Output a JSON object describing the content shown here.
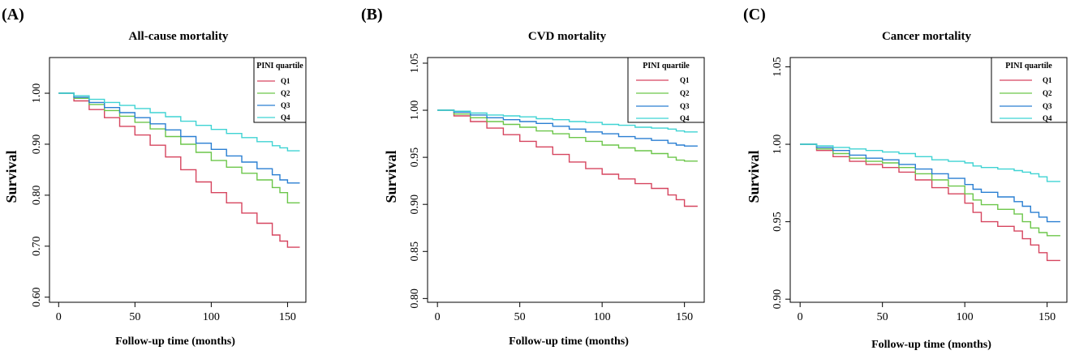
{
  "chart_data": [
    {
      "type": "line",
      "panel_label": "(A)",
      "title": "All-cause mortality",
      "xlabel": "Follow-up time (months)",
      "ylabel": "Survival",
      "xlim": [
        -6,
        162
      ],
      "ylim": [
        0.59,
        1.07
      ],
      "xticks": [
        0,
        50,
        100,
        150
      ],
      "yticks": [
        0.6,
        0.7,
        0.8,
        0.9,
        1.0
      ],
      "ytick_labels": [
        "0.60",
        "0.70",
        "0.80",
        "0.90",
        "1.00"
      ],
      "legend_title": "PINI quartile",
      "legend_position": "top-right",
      "series": [
        {
          "name": "Q1",
          "color": "#d6455f",
          "x": [
            0,
            10,
            20,
            30,
            40,
            50,
            60,
            70,
            80,
            90,
            100,
            110,
            120,
            130,
            140,
            145,
            150,
            158
          ],
          "y": [
            1.0,
            0.985,
            0.968,
            0.952,
            0.935,
            0.918,
            0.898,
            0.875,
            0.85,
            0.826,
            0.805,
            0.785,
            0.765,
            0.745,
            0.722,
            0.71,
            0.698,
            0.698
          ]
        },
        {
          "name": "Q2",
          "color": "#6cc64a",
          "x": [
            0,
            10,
            20,
            30,
            40,
            50,
            60,
            70,
            80,
            90,
            100,
            110,
            120,
            130,
            140,
            145,
            150,
            158
          ],
          "y": [
            1.0,
            0.99,
            0.978,
            0.966,
            0.955,
            0.943,
            0.93,
            0.915,
            0.9,
            0.884,
            0.868,
            0.855,
            0.843,
            0.83,
            0.815,
            0.805,
            0.785,
            0.785
          ]
        },
        {
          "name": "Q3",
          "color": "#2a7fd2",
          "x": [
            0,
            10,
            20,
            30,
            40,
            50,
            60,
            70,
            80,
            90,
            100,
            110,
            120,
            130,
            140,
            145,
            150,
            158
          ],
          "y": [
            1.0,
            0.992,
            0.982,
            0.972,
            0.962,
            0.952,
            0.94,
            0.928,
            0.915,
            0.902,
            0.89,
            0.877,
            0.865,
            0.852,
            0.84,
            0.83,
            0.824,
            0.824
          ]
        },
        {
          "name": "Q4",
          "color": "#3fd3d3",
          "x": [
            0,
            10,
            20,
            30,
            40,
            50,
            60,
            70,
            80,
            90,
            100,
            110,
            120,
            130,
            140,
            145,
            150,
            158
          ],
          "y": [
            1.0,
            0.995,
            0.988,
            0.982,
            0.976,
            0.97,
            0.962,
            0.954,
            0.945,
            0.937,
            0.929,
            0.921,
            0.913,
            0.905,
            0.897,
            0.893,
            0.887,
            0.887
          ]
        }
      ]
    },
    {
      "type": "line",
      "panel_label": "(B)",
      "title": "CVD mortality",
      "xlabel": "Follow-up time (months)",
      "ylabel": "Survival",
      "xlim": [
        -6,
        162
      ],
      "ylim": [
        0.796,
        1.056
      ],
      "xticks": [
        0,
        50,
        100,
        150
      ],
      "yticks": [
        0.8,
        0.85,
        0.9,
        0.95,
        1.0,
        1.05
      ],
      "ytick_labels": [
        "0.80",
        "0.85",
        "0.90",
        "0.95",
        "1.00",
        "1.05"
      ],
      "legend_title": "PINI quartile",
      "legend_position": "top-right",
      "series": [
        {
          "name": "Q1",
          "color": "#d6455f",
          "x": [
            0,
            10,
            20,
            30,
            40,
            50,
            60,
            70,
            80,
            90,
            100,
            110,
            120,
            130,
            140,
            145,
            150,
            158
          ],
          "y": [
            1.0,
            0.994,
            0.988,
            0.981,
            0.974,
            0.967,
            0.961,
            0.953,
            0.945,
            0.938,
            0.932,
            0.927,
            0.922,
            0.917,
            0.91,
            0.905,
            0.898,
            0.898
          ]
        },
        {
          "name": "Q2",
          "color": "#6cc64a",
          "x": [
            0,
            10,
            20,
            30,
            40,
            50,
            60,
            70,
            80,
            90,
            100,
            110,
            120,
            130,
            140,
            145,
            150,
            158
          ],
          "y": [
            1.0,
            0.996,
            0.992,
            0.988,
            0.985,
            0.982,
            0.978,
            0.975,
            0.971,
            0.967,
            0.963,
            0.96,
            0.957,
            0.954,
            0.95,
            0.947,
            0.946,
            0.946
          ]
        },
        {
          "name": "Q3",
          "color": "#2a7fd2",
          "x": [
            0,
            10,
            20,
            30,
            40,
            50,
            60,
            70,
            80,
            90,
            100,
            110,
            120,
            130,
            140,
            145,
            150,
            158
          ],
          "y": [
            1.0,
            0.998,
            0.995,
            0.992,
            0.99,
            0.988,
            0.986,
            0.983,
            0.98,
            0.977,
            0.975,
            0.972,
            0.97,
            0.968,
            0.965,
            0.963,
            0.962,
            0.962
          ]
        },
        {
          "name": "Q4",
          "color": "#3fd3d3",
          "x": [
            0,
            10,
            20,
            30,
            40,
            50,
            60,
            70,
            80,
            90,
            100,
            110,
            120,
            130,
            140,
            145,
            150,
            158
          ],
          "y": [
            1.0,
            0.999,
            0.997,
            0.995,
            0.994,
            0.993,
            0.991,
            0.99,
            0.988,
            0.987,
            0.985,
            0.984,
            0.982,
            0.981,
            0.98,
            0.978,
            0.977,
            0.977
          ]
        }
      ]
    },
    {
      "type": "line",
      "panel_label": "(C)",
      "title": "Cancer mortality",
      "xlabel": "Follow-up time (months)",
      "ylabel": "Survival",
      "xlim": [
        -6,
        162
      ],
      "ylim": [
        0.898,
        1.056
      ],
      "xticks": [
        0,
        50,
        100,
        150
      ],
      "yticks": [
        0.9,
        0.95,
        1.0,
        1.05
      ],
      "ytick_labels": [
        "0.90",
        "0.95",
        "1.00",
        "1.05"
      ],
      "legend_title": "PINI quartile",
      "legend_position": "top-right",
      "series": [
        {
          "name": "Q1",
          "color": "#d6455f",
          "x": [
            0,
            10,
            20,
            30,
            40,
            50,
            60,
            70,
            80,
            90,
            100,
            105,
            110,
            120,
            130,
            135,
            140,
            145,
            150,
            158
          ],
          "y": [
            1.0,
            0.996,
            0.992,
            0.989,
            0.987,
            0.985,
            0.982,
            0.977,
            0.972,
            0.968,
            0.962,
            0.956,
            0.95,
            0.947,
            0.944,
            0.939,
            0.935,
            0.93,
            0.925,
            0.925
          ]
        },
        {
          "name": "Q2",
          "color": "#6cc64a",
          "x": [
            0,
            10,
            20,
            30,
            40,
            50,
            60,
            70,
            80,
            90,
            100,
            105,
            110,
            120,
            130,
            135,
            140,
            145,
            150,
            158
          ],
          "y": [
            1.0,
            0.997,
            0.994,
            0.991,
            0.989,
            0.988,
            0.985,
            0.981,
            0.977,
            0.973,
            0.968,
            0.964,
            0.961,
            0.958,
            0.955,
            0.95,
            0.946,
            0.943,
            0.941,
            0.941
          ]
        },
        {
          "name": "Q3",
          "color": "#2a7fd2",
          "x": [
            0,
            10,
            20,
            30,
            40,
            50,
            60,
            70,
            80,
            90,
            100,
            105,
            110,
            120,
            130,
            135,
            140,
            145,
            150,
            158
          ],
          "y": [
            1.0,
            0.998,
            0.996,
            0.993,
            0.991,
            0.99,
            0.987,
            0.984,
            0.981,
            0.978,
            0.974,
            0.971,
            0.969,
            0.966,
            0.963,
            0.96,
            0.956,
            0.953,
            0.95,
            0.95
          ]
        },
        {
          "name": "Q4",
          "color": "#3fd3d3",
          "x": [
            0,
            10,
            20,
            30,
            40,
            50,
            60,
            70,
            80,
            90,
            100,
            105,
            110,
            120,
            130,
            135,
            140,
            145,
            150,
            158
          ],
          "y": [
            1.0,
            0.999,
            0.998,
            0.997,
            0.996,
            0.995,
            0.994,
            0.992,
            0.99,
            0.989,
            0.988,
            0.986,
            0.985,
            0.984,
            0.983,
            0.982,
            0.981,
            0.979,
            0.976,
            0.976
          ]
        }
      ]
    }
  ]
}
